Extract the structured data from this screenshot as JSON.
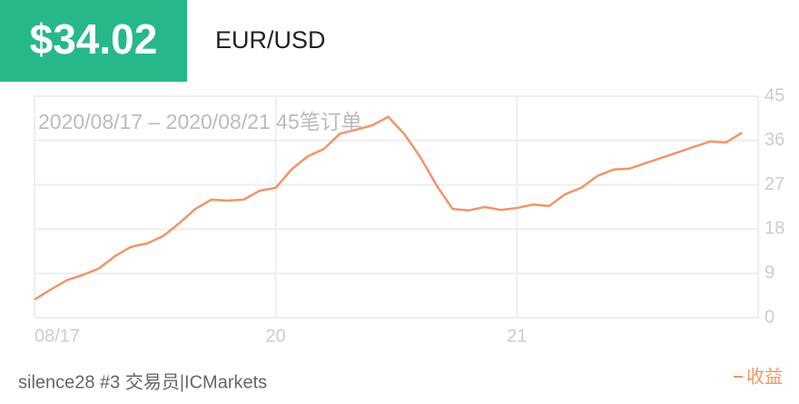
{
  "header": {
    "price": "$34.02",
    "pair": "EUR/USD"
  },
  "chart_data": {
    "type": "line",
    "subtitle": "2020/08/17 – 2020/08/21 45笔订单",
    "x": [
      0,
      1,
      2,
      3,
      4,
      5,
      6,
      7,
      8,
      9,
      10,
      11,
      12,
      13,
      14,
      15,
      16,
      17,
      18,
      19,
      20,
      21,
      22,
      23,
      24,
      25,
      26,
      27,
      28,
      29,
      30,
      31,
      32,
      33,
      34,
      35,
      36,
      37,
      38,
      39,
      40,
      41,
      42,
      43,
      44
    ],
    "xlim": [
      0,
      45
    ],
    "xticks": [
      {
        "value": 0,
        "label": "08/17"
      },
      {
        "value": 15,
        "label": "20"
      },
      {
        "value": 30,
        "label": "21"
      }
    ],
    "ylim": [
      0,
      45
    ],
    "yticks": [
      0,
      9,
      18,
      27,
      36,
      45
    ],
    "grid": true,
    "series": [
      {
        "name": "收益",
        "color": "#f0956a",
        "values": [
          3.7,
          5.7,
          7.6,
          8.7,
          10,
          12.5,
          14.4,
          15.1,
          16.6,
          19.2,
          22.1,
          24,
          23.8,
          24,
          25.8,
          26.4,
          30.2,
          32.8,
          34.3,
          37.4,
          38.2,
          39.1,
          40.8,
          37.3,
          32.6,
          26.9,
          22.1,
          21.8,
          22.5,
          21.9,
          22.3,
          23,
          22.7,
          25.1,
          26.4,
          28.8,
          30.1,
          30.3,
          31.4,
          32.5,
          33.6,
          34.7,
          35.8,
          35.6,
          37.6
        ]
      }
    ]
  },
  "footer": "silence28 #3 交易员|ICMarkets"
}
